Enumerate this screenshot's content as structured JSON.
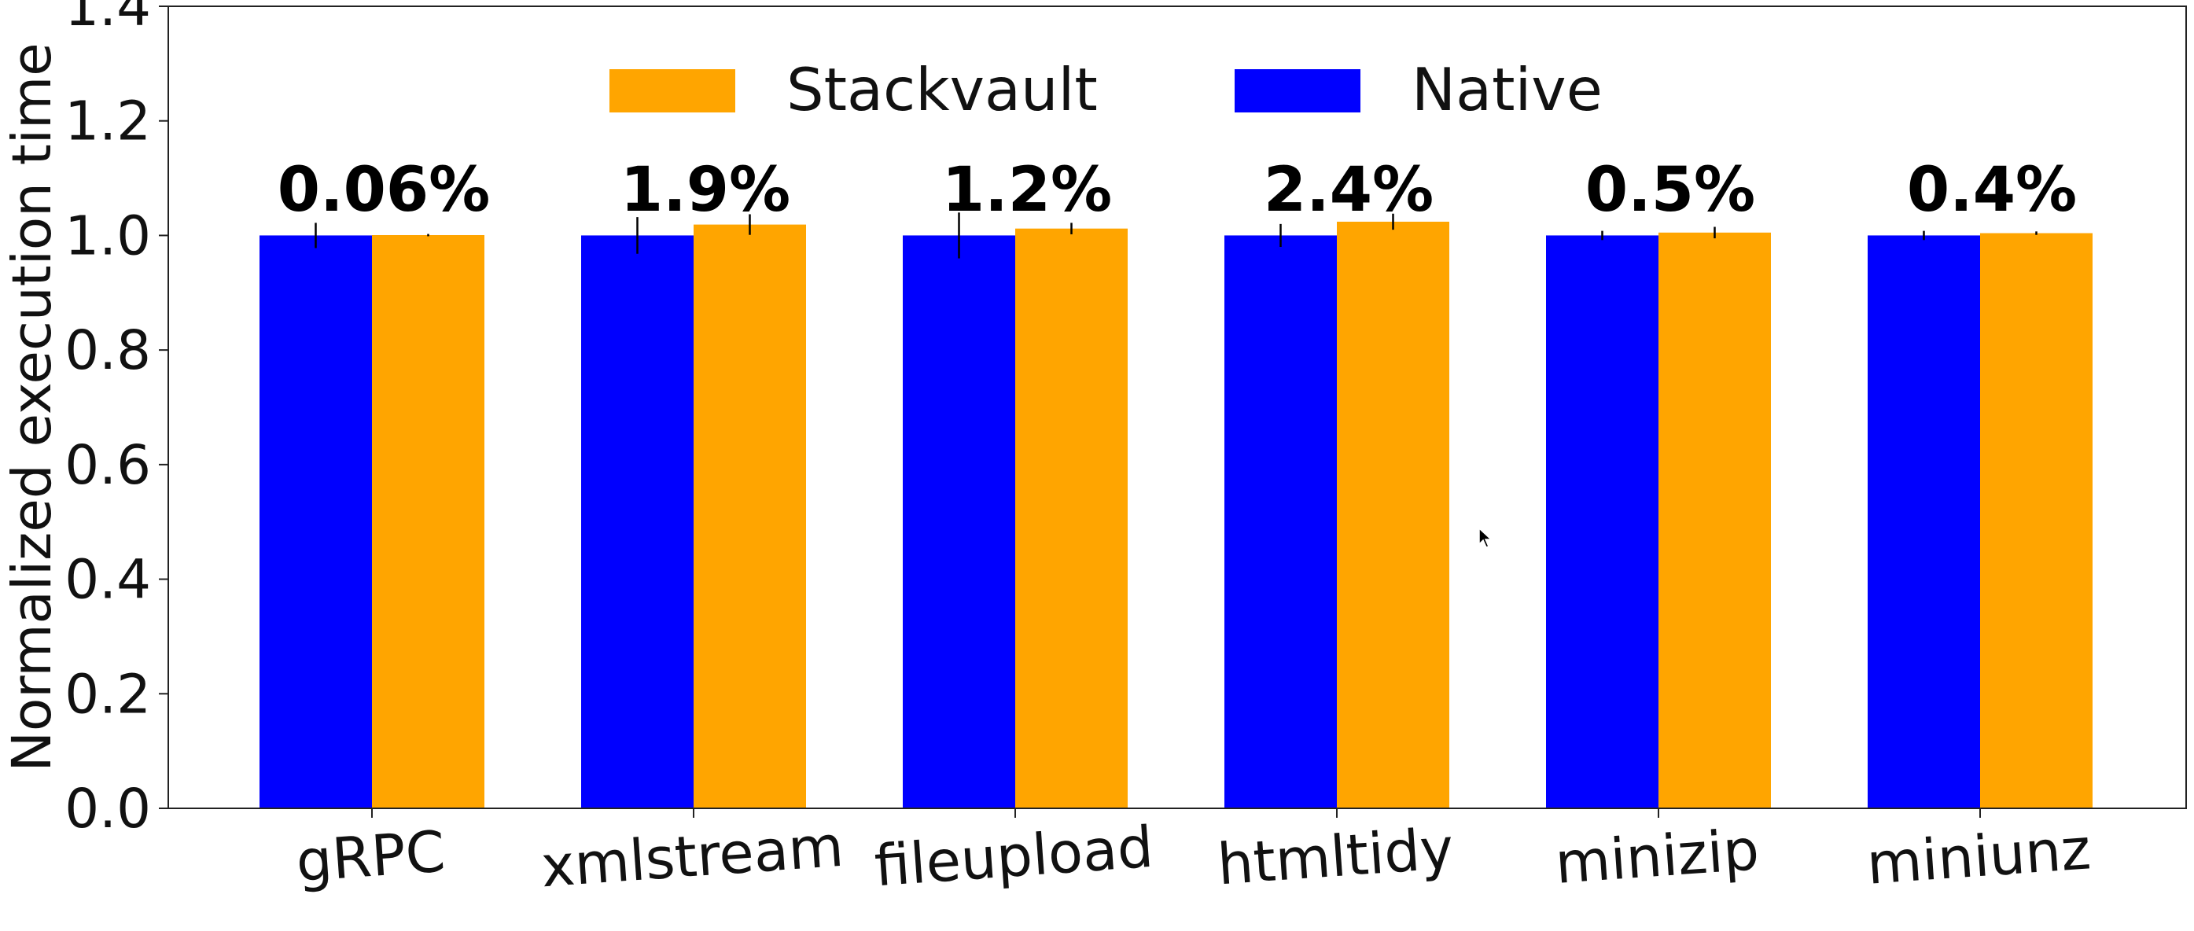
{
  "chart_data": {
    "type": "bar",
    "title": "",
    "xlabel": "",
    "ylabel": "Normalized execution time",
    "ylim": [
      0,
      1.4
    ],
    "yticks": [
      "0.0",
      "0.2",
      "0.4",
      "0.6",
      "0.8",
      "1.0",
      "1.2",
      "1.4"
    ],
    "grid": false,
    "legend_position": "top-center",
    "categories": [
      "gRPC",
      "xmlstream",
      "fileupload",
      "htmltidy",
      "minizip",
      "miniunz"
    ],
    "series": [
      {
        "name": "Native",
        "color": "#0000ff",
        "values": [
          1.0,
          1.0,
          1.0,
          1.0,
          1.0,
          1.0
        ],
        "errors": [
          0.022,
          0.032,
          0.04,
          0.02,
          0.008,
          0.008
        ]
      },
      {
        "name": "Stackvault",
        "color": "#ffa500",
        "values": [
          1.0006,
          1.019,
          1.012,
          1.024,
          1.005,
          1.004
        ],
        "errors": [
          0.002,
          0.018,
          0.01,
          0.014,
          0.01,
          0.003
        ]
      }
    ],
    "legend": [
      {
        "name": "Stackvault",
        "color": "#ffa500"
      },
      {
        "name": "Native",
        "color": "#0000ff"
      }
    ],
    "annotations": [
      "0.06%",
      "1.9%",
      "1.2%",
      "2.4%",
      "0.5%",
      "0.4%"
    ]
  }
}
